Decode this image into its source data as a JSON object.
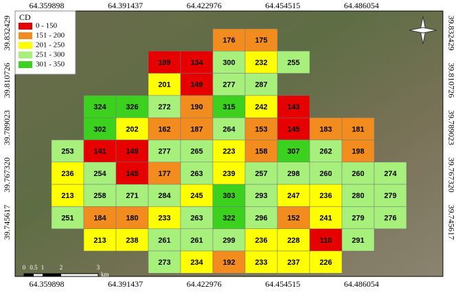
{
  "legend": {
    "title": "CD",
    "classes": [
      {
        "label": "0 - 150",
        "color": "#e60000"
      },
      {
        "label": "151 - 200",
        "color": "#f28c1e"
      },
      {
        "label": "201 - 250",
        "color": "#ffff00"
      },
      {
        "label": "251 - 300",
        "color": "#a8f07c"
      },
      {
        "label": "301 - 350",
        "color": "#3dd11f"
      }
    ]
  },
  "x_labels": [
    "64.359898",
    "64.391437",
    "64.422976",
    "64.454515",
    "64.486054"
  ],
  "y_labels": [
    "39.832429",
    "39.810726",
    "39.789023",
    "39.767320",
    "39.745617"
  ],
  "grid": {
    "rows": [
      [
        null,
        null,
        null,
        null,
        null,
        176,
        175,
        null,
        null,
        null,
        null
      ],
      [
        null,
        null,
        null,
        109,
        134,
        300,
        232,
        255,
        null,
        null,
        null
      ],
      [
        null,
        null,
        null,
        201,
        149,
        277,
        287,
        null,
        null,
        null,
        null
      ],
      [
        null,
        324,
        326,
        272,
        190,
        315,
        242,
        143,
        null,
        null,
        null
      ],
      [
        null,
        302,
        202,
        162,
        187,
        264,
        153,
        145,
        183,
        181,
        null
      ],
      [
        253,
        141,
        149,
        277,
        265,
        223,
        158,
        307,
        262,
        198,
        null
      ],
      [
        236,
        254,
        145,
        177,
        263,
        239,
        257,
        298,
        260,
        260,
        274
      ],
      [
        213,
        258,
        271,
        284,
        245,
        303,
        293,
        247,
        236,
        280,
        279
      ],
      [
        251,
        184,
        180,
        233,
        263,
        322,
        296,
        152,
        241,
        279,
        276
      ],
      [
        null,
        213,
        238,
        261,
        261,
        299,
        236,
        228,
        110,
        291,
        null
      ],
      [
        null,
        null,
        null,
        273,
        234,
        192,
        233,
        237,
        226,
        null,
        null
      ]
    ]
  },
  "scale_bar": {
    "labels": [
      "0",
      "0.5",
      "1",
      "2",
      "3"
    ],
    "unit": "km"
  }
}
